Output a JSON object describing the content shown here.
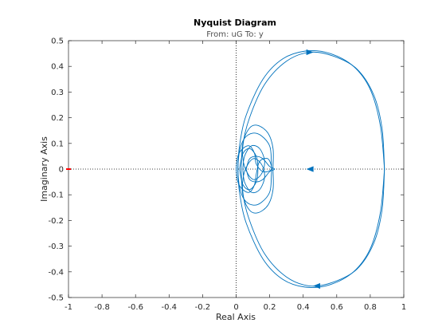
{
  "chart_data": {
    "type": "line",
    "title": "Nyquist Diagram",
    "subtitle": "From: uG  To: y",
    "xlabel": "Real Axis",
    "ylabel": "Imaginary Axis",
    "xlim": [
      -1,
      1
    ],
    "ylim": [
      -0.5,
      0.5
    ],
    "x_ticks": [
      -1,
      -0.8,
      -0.6,
      -0.4,
      -0.2,
      0,
      0.2,
      0.4,
      0.6,
      0.8,
      1
    ],
    "x_tick_labels": [
      "-1",
      "-0.8",
      "-0.6",
      "-0.4",
      "-0.2",
      "0",
      "0.2",
      "0.4",
      "0.6",
      "0.8",
      "1"
    ],
    "y_ticks": [
      -0.5,
      -0.4,
      -0.3,
      -0.2,
      -0.1,
      0,
      0.1,
      0.2,
      0.3,
      0.4,
      0.5
    ],
    "y_tick_labels": [
      "-0.5",
      "-0.4",
      "-0.3",
      "-0.2",
      "-0.1",
      "0",
      "0.1",
      "0.2",
      "0.3",
      "0.4",
      "0.5"
    ],
    "grid": false,
    "zero_lines": true,
    "critical_point": {
      "x": -1,
      "y": 0,
      "color": "#ff0000"
    },
    "series_color": "#0072bd",
    "series": [
      {
        "values": [
          [
            0.885,
            0.0
          ],
          [
            0.87,
            0.16
          ],
          [
            0.82,
            0.29
          ],
          [
            0.72,
            0.39
          ],
          [
            0.58,
            0.44
          ],
          [
            0.44,
            0.455
          ],
          [
            0.3,
            0.42
          ],
          [
            0.17,
            0.33
          ],
          [
            0.08,
            0.2
          ],
          [
            0.04,
            0.09
          ],
          [
            0.05,
            0.01
          ],
          [
            0.1,
            -0.04
          ],
          [
            0.15,
            -0.02
          ],
          [
            0.17,
            0.03
          ],
          [
            0.14,
            0.08
          ],
          [
            0.09,
            0.09
          ],
          [
            0.05,
            0.05
          ],
          [
            0.04,
            0.0
          ]
        ]
      },
      {
        "values": [
          [
            0.885,
            0.0
          ],
          [
            0.87,
            -0.16
          ],
          [
            0.82,
            -0.29
          ],
          [
            0.72,
            -0.39
          ],
          [
            0.58,
            -0.44
          ],
          [
            0.44,
            -0.455
          ],
          [
            0.3,
            -0.42
          ],
          [
            0.17,
            -0.33
          ],
          [
            0.08,
            -0.2
          ],
          [
            0.04,
            -0.09
          ],
          [
            0.05,
            -0.01
          ],
          [
            0.1,
            0.04
          ],
          [
            0.15,
            0.02
          ],
          [
            0.17,
            -0.03
          ],
          [
            0.14,
            -0.08
          ],
          [
            0.09,
            -0.09
          ],
          [
            0.05,
            -0.05
          ],
          [
            0.04,
            0.0
          ]
        ]
      },
      {
        "values": [
          [
            0.885,
            0.0
          ],
          [
            0.86,
            0.17
          ],
          [
            0.8,
            0.31
          ],
          [
            0.7,
            0.4
          ],
          [
            0.56,
            0.45
          ],
          [
            0.42,
            0.46
          ],
          [
            0.28,
            0.43
          ],
          [
            0.16,
            0.35
          ],
          [
            0.06,
            0.21
          ],
          [
            0.02,
            0.09
          ],
          [
            0.01,
            0.0
          ]
        ]
      },
      {
        "values": [
          [
            0.885,
            0.0
          ],
          [
            0.86,
            -0.17
          ],
          [
            0.8,
            -0.31
          ],
          [
            0.7,
            -0.4
          ],
          [
            0.56,
            -0.45
          ],
          [
            0.42,
            -0.46
          ],
          [
            0.28,
            -0.43
          ],
          [
            0.16,
            -0.35
          ],
          [
            0.06,
            -0.21
          ],
          [
            0.02,
            -0.09
          ],
          [
            0.01,
            0.0
          ]
        ]
      },
      {
        "values": [
          [
            0.03,
            0.0
          ],
          [
            0.04,
            0.1
          ],
          [
            0.08,
            0.16
          ],
          [
            0.13,
            0.17
          ],
          [
            0.19,
            0.14
          ],
          [
            0.22,
            0.08
          ],
          [
            0.22,
            0.0
          ],
          [
            0.22,
            -0.08
          ],
          [
            0.19,
            -0.14
          ],
          [
            0.13,
            -0.17
          ],
          [
            0.08,
            -0.16
          ],
          [
            0.04,
            -0.1
          ],
          [
            0.03,
            0.0
          ]
        ]
      },
      {
        "values": [
          [
            0.01,
            0.0
          ],
          [
            0.02,
            0.07
          ],
          [
            0.05,
            0.12
          ],
          [
            0.1,
            0.14
          ],
          [
            0.15,
            0.13
          ],
          [
            0.2,
            0.09
          ],
          [
            0.21,
            0.03
          ],
          [
            0.21,
            -0.03
          ],
          [
            0.2,
            -0.09
          ],
          [
            0.15,
            -0.13
          ],
          [
            0.1,
            -0.14
          ],
          [
            0.05,
            -0.12
          ],
          [
            0.02,
            -0.07
          ],
          [
            0.01,
            0.0
          ]
        ]
      },
      {
        "values": [
          [
            0.02,
            0.0
          ],
          [
            0.04,
            0.06
          ],
          [
            0.08,
            0.08
          ],
          [
            0.12,
            0.05
          ],
          [
            0.13,
            0.0
          ],
          [
            0.12,
            -0.05
          ],
          [
            0.08,
            -0.08
          ],
          [
            0.04,
            -0.06
          ],
          [
            0.02,
            0.0
          ]
        ]
      },
      {
        "values": [
          [
            0.0,
            0.0
          ],
          [
            0.01,
            0.05
          ],
          [
            0.04,
            0.08
          ],
          [
            0.08,
            0.09
          ],
          [
            0.11,
            0.06
          ],
          [
            0.12,
            0.02
          ],
          [
            0.16,
            -0.01
          ],
          [
            0.21,
            0.0
          ],
          [
            0.19,
            0.04
          ],
          [
            0.14,
            0.03
          ],
          [
            0.12,
            -0.02
          ],
          [
            0.11,
            -0.06
          ],
          [
            0.08,
            -0.09
          ],
          [
            0.04,
            -0.08
          ],
          [
            0.01,
            -0.05
          ],
          [
            0.0,
            0.0
          ]
        ]
      },
      {
        "values": [
          [
            0.06,
            0.0
          ],
          [
            0.08,
            0.04
          ],
          [
            0.12,
            0.05
          ],
          [
            0.16,
            0.04
          ],
          [
            0.2,
            0.01
          ],
          [
            0.23,
            0.0
          ],
          [
            0.2,
            -0.01
          ],
          [
            0.16,
            -0.04
          ],
          [
            0.12,
            -0.05
          ],
          [
            0.08,
            -0.04
          ],
          [
            0.06,
            0.0
          ]
        ]
      }
    ],
    "direction_arrows": [
      {
        "x": 0.44,
        "y": 0.455,
        "direction": "right"
      },
      {
        "x": 0.48,
        "y": -0.455,
        "direction": "left"
      },
      {
        "x": 0.44,
        "y": 0.0,
        "direction": "left"
      }
    ]
  }
}
